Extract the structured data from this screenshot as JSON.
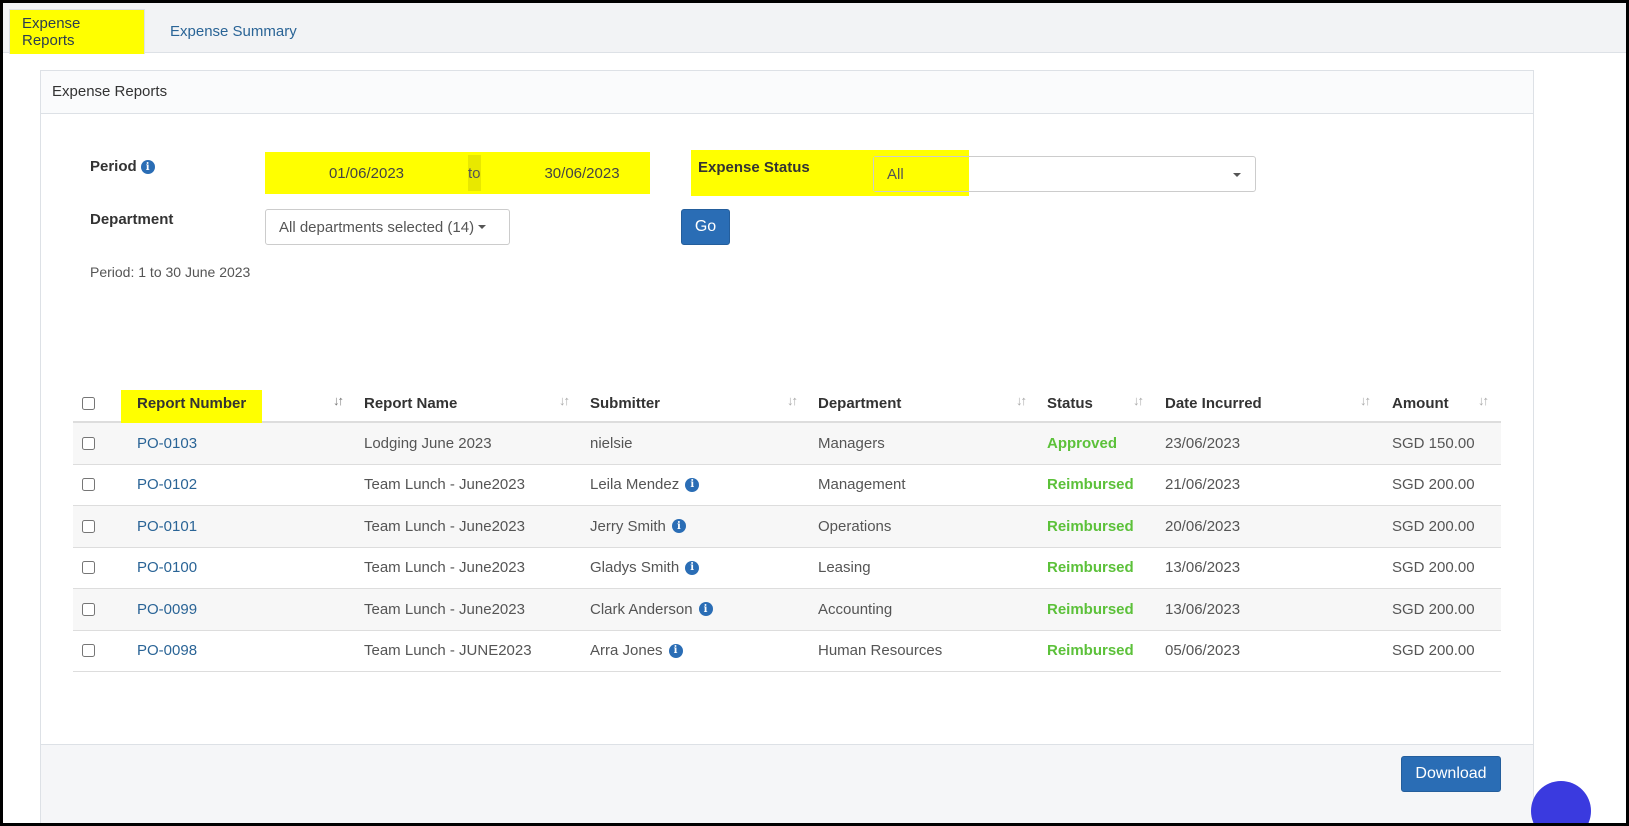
{
  "tabs": [
    {
      "label": "Expense Reports"
    },
    {
      "label": "Expense Summary"
    }
  ],
  "panel": {
    "title": "Expense Reports"
  },
  "filters": {
    "period_label": "Period",
    "date_from": "01/06/2023",
    "date_to_sep": "to",
    "date_to": "30/06/2023",
    "status_label": "Expense Status",
    "status_value": "All",
    "department_label": "Department",
    "department_value": "All departments selected (14)",
    "go_label": "Go",
    "period_text": "Period: 1 to 30 June 2023"
  },
  "table": {
    "headers": [
      "Report Number",
      "Report Name",
      "Submitter",
      "Department",
      "Status",
      "Date Incurred",
      "Amount"
    ],
    "rows": [
      {
        "number": "PO-0103",
        "name": "Lodging June 2023",
        "submitter": "nielsie",
        "department": "Managers",
        "status": "Approved",
        "date": "23/06/2023",
        "amount": "SGD 150.00"
      },
      {
        "number": "PO-0102",
        "name": "Team Lunch - June2023",
        "submitter": "Leila Mendez",
        "department": "Management",
        "status": "Reimbursed",
        "date": "21/06/2023",
        "amount": "SGD 200.00"
      },
      {
        "number": "PO-0101",
        "name": "Team Lunch - June2023",
        "submitter": "Jerry Smith",
        "department": "Operations",
        "status": "Reimbursed",
        "date": "20/06/2023",
        "amount": "SGD 200.00"
      },
      {
        "number": "PO-0100",
        "name": "Team Lunch - June2023",
        "submitter": "Gladys Smith",
        "department": "Leasing",
        "status": "Reimbursed",
        "date": "13/06/2023",
        "amount": "SGD 200.00"
      },
      {
        "number": "PO-0099",
        "name": "Team Lunch - June2023",
        "submitter": "Clark Anderson",
        "department": "Accounting",
        "status": "Reimbursed",
        "date": "13/06/2023",
        "amount": "SGD 200.00"
      },
      {
        "number": "PO-0098",
        "name": "Team Lunch - JUNE2023",
        "submitter": "Arra Jones",
        "department": "Human Resources",
        "status": "Reimbursed",
        "date": "05/06/2023",
        "amount": "SGD 200.00"
      }
    ]
  },
  "footer": {
    "download_label": "Download"
  },
  "colors": {
    "highlight": "#ffff00",
    "primary": "#2a6db5",
    "success": "#5cc13a",
    "link": "#2a6496"
  }
}
